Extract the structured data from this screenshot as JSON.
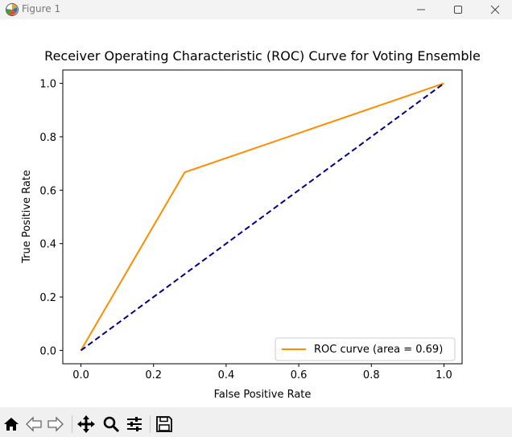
{
  "window": {
    "title": "Figure 1",
    "icon": "matplotlib-icon",
    "controls": [
      "minimize-icon",
      "maximize-icon",
      "close-icon"
    ]
  },
  "toolbar": {
    "tools": [
      "home-icon",
      "back-arrow-icon",
      "forward-arrow-icon",
      "pan-icon",
      "zoom-icon",
      "configure-subplots-icon",
      "save-icon"
    ]
  },
  "chart_data": {
    "type": "line",
    "title": "Receiver Operating Characteristic (ROC) Curve for Voting Ensemble",
    "xlabel": "False Positive Rate",
    "ylabel": "True Positive Rate",
    "xlim": [
      -0.05,
      1.05
    ],
    "ylim": [
      -0.05,
      1.05
    ],
    "xticks": [
      "0.0",
      "0.2",
      "0.4",
      "0.6",
      "0.8",
      "1.0"
    ],
    "yticks": [
      "0.0",
      "0.2",
      "0.4",
      "0.6",
      "0.8",
      "1.0"
    ],
    "grid": false,
    "legend_position": "lower-right",
    "series": [
      {
        "name": "ROC curve (area = 0.69)",
        "x": [
          0.0,
          0.286,
          1.0
        ],
        "y": [
          0.0,
          0.667,
          1.0
        ],
        "color": "#ff8c00",
        "style": "solid"
      },
      {
        "x": [
          0.0,
          1.0
        ],
        "y": [
          0.0,
          1.0
        ],
        "color": "#000080",
        "style": "dashed"
      }
    ]
  }
}
